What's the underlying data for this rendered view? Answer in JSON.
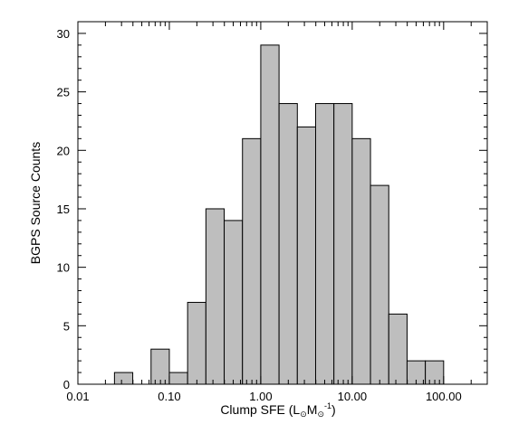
{
  "chart_data": {
    "type": "bar",
    "title": "",
    "xlabel": {
      "prefix": "Clump SFE (L",
      "sub1": "⊙",
      "mid": "M",
      "sub2": "⊙",
      "sup": "-1",
      "suffix": ")"
    },
    "ylabel": "BGPS Source Counts",
    "x_scale": "log",
    "xlim": [
      0.01,
      300
    ],
    "ylim": [
      0,
      31
    ],
    "x_ticks": [
      0.01,
      0.1,
      1,
      10,
      100
    ],
    "x_tick_labels": [
      "0.01",
      "0.10",
      "1.00",
      "10.00",
      "100.00"
    ],
    "y_ticks": [
      0,
      5,
      10,
      15,
      20,
      25,
      30
    ],
    "y_tick_labels": [
      "0",
      "5",
      "10",
      "15",
      "20",
      "25",
      "30"
    ],
    "bin_width_dex": 0.2,
    "bin_start_log10": -1.6,
    "values": [
      1,
      0,
      3,
      1,
      7,
      15,
      14,
      21,
      29,
      24,
      22,
      24,
      24,
      21,
      17,
      6,
      2,
      2
    ],
    "bar_color": "#bebebe",
    "edge_color": "#000000",
    "grid": false,
    "legend": "none"
  }
}
